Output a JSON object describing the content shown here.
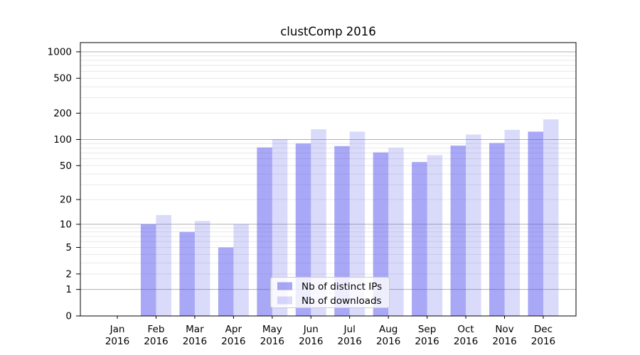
{
  "page_title": "clustComp 2016",
  "colors": {
    "bar_distinct_ips": "rgba(82,82,238,0.50)",
    "bar_downloads": "rgba(82,82,238,0.21)",
    "grid_major": "#b0b0b0",
    "grid_minor": "#e8e8e8",
    "axis": "#000000",
    "legend_border": "#cccccc",
    "legend_bg": "rgba(255,255,255,0.8)"
  },
  "chart_data": {
    "type": "bar",
    "title": "clustComp 2016",
    "yscale": "log1p",
    "ylim": [
      0,
      1270
    ],
    "grid": true,
    "legend_position": "lower center",
    "categories": [
      "Jan 2016",
      "Feb 2016",
      "Mar 2016",
      "Apr 2016",
      "May 2016",
      "Jun 2016",
      "Jul 2016",
      "Aug 2016",
      "Sep 2016",
      "Oct 2016",
      "Nov 2016",
      "Dec 2016"
    ],
    "series": [
      {
        "name": "Nb of distinct IPs",
        "color": "rgba(82,82,238,0.50)",
        "values": [
          0,
          10,
          8,
          5,
          81,
          90,
          84,
          71,
          55,
          85,
          91,
          123
        ]
      },
      {
        "name": "Nb of downloads",
        "color": "rgba(82,82,238,0.21)",
        "values": [
          0,
          13,
          11,
          10,
          100,
          131,
          123,
          80,
          66,
          114,
          129,
          170
        ]
      }
    ],
    "yticks": [
      0,
      1,
      2,
      5,
      10,
      20,
      50,
      100,
      200,
      500,
      1000
    ],
    "major_gridlines": [
      1,
      10,
      100,
      1000
    ],
    "minor_gridlines": [
      2,
      3,
      4,
      5,
      6,
      7,
      8,
      9,
      20,
      30,
      40,
      50,
      60,
      70,
      80,
      90,
      200,
      300,
      400,
      500,
      600,
      700,
      800,
      900
    ]
  }
}
